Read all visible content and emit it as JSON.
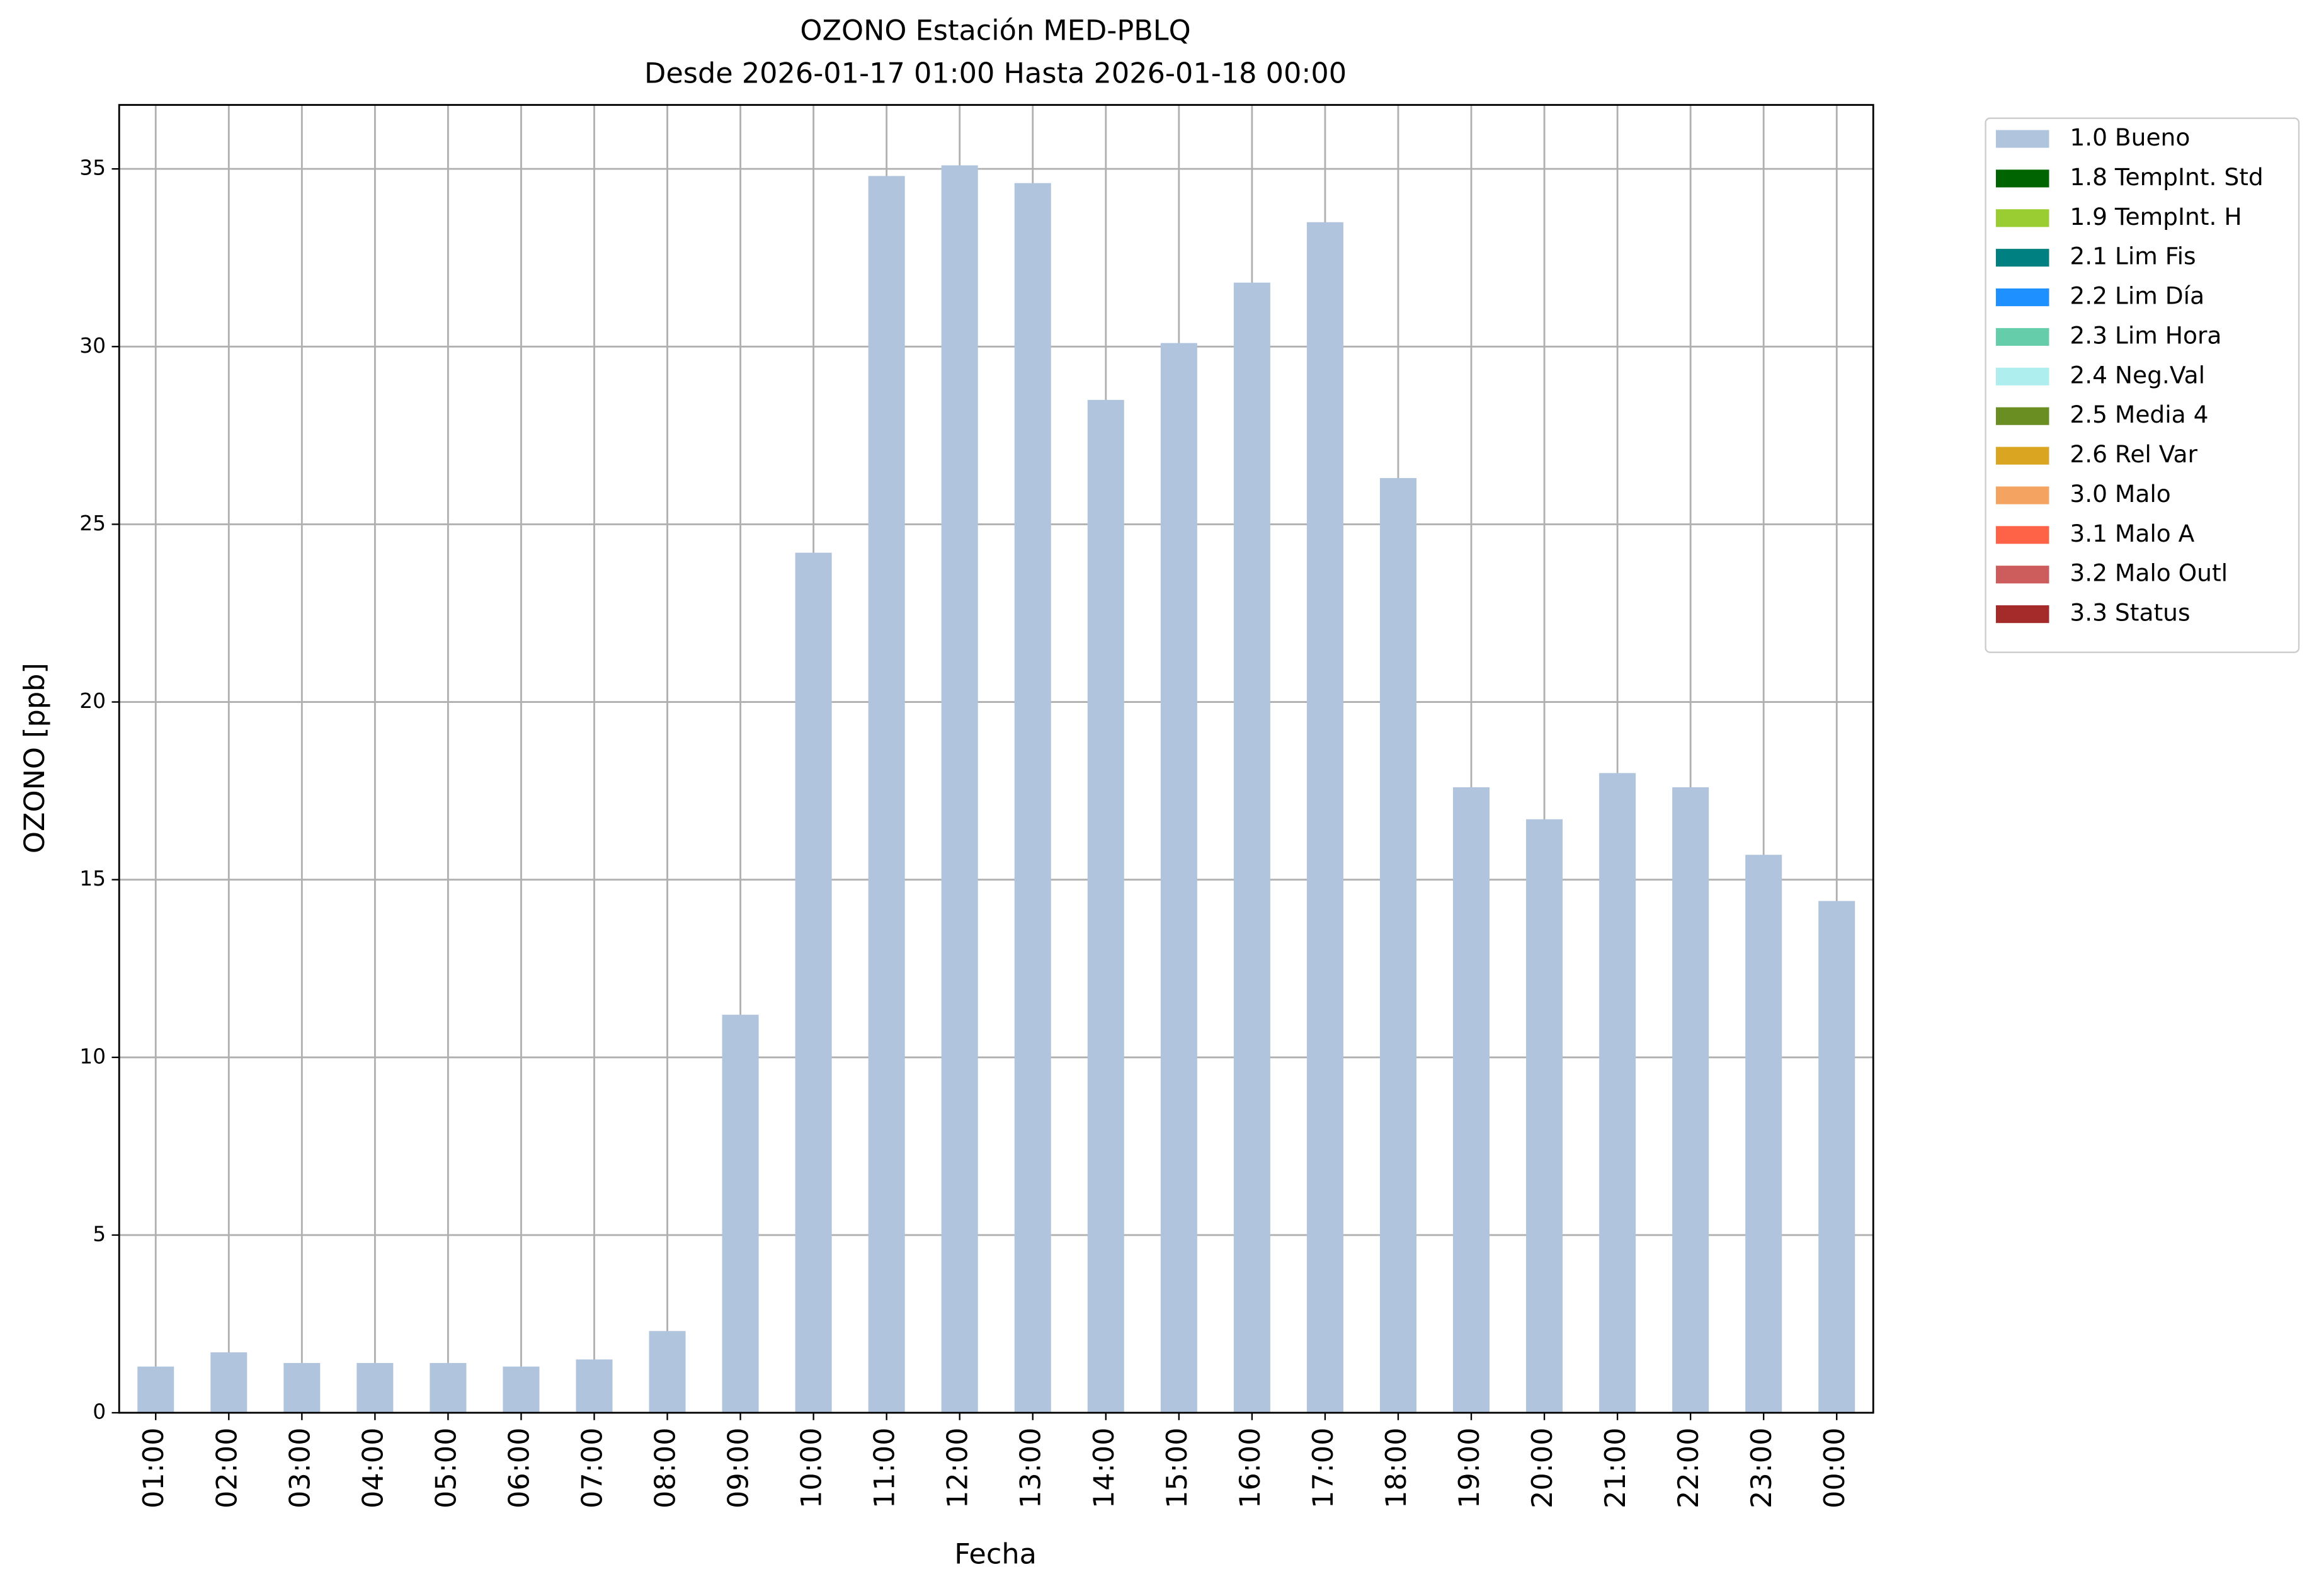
{
  "chart_data": {
    "type": "bar",
    "stacked": true,
    "title": "OZONO Estación MED-PBLQ",
    "subtitle": "Desde 2026-01-17 01:00 Hasta 2026-01-18 00:00",
    "x_label": "Fecha",
    "y_label": "OZONO [ppb]",
    "categories": [
      "01:00",
      "02:00",
      "03:00",
      "04:00",
      "05:00",
      "06:00",
      "07:00",
      "08:00",
      "09:00",
      "10:00",
      "11:00",
      "12:00",
      "13:00",
      "14:00",
      "15:00",
      "16:00",
      "17:00",
      "18:00",
      "19:00",
      "20:00",
      "21:00",
      "22:00",
      "23:00",
      "00:00"
    ],
    "series": [
      {
        "name": "1.0 Bueno",
        "color": "#b0c4de",
        "values": [
          1.3,
          1.7,
          1.4,
          1.4,
          1.4,
          1.3,
          1.5,
          2.3,
          11.2,
          24.2,
          34.8,
          35.1,
          34.6,
          28.5,
          30.1,
          31.8,
          33.5,
          26.3,
          17.6,
          16.7,
          18.0,
          17.6,
          15.7,
          14.4
        ]
      },
      {
        "name": "1.8 TempInt. Std",
        "color": "#006400",
        "values": [
          0,
          0,
          0,
          0,
          0,
          0,
          0,
          0,
          0,
          0,
          0,
          0,
          0,
          0,
          0,
          0,
          0,
          0,
          0,
          0,
          0,
          0,
          0,
          0
        ]
      },
      {
        "name": "1.9 TempInt. H",
        "color": "#9acd32",
        "values": [
          0,
          0,
          0,
          0,
          0,
          0,
          0,
          0,
          0,
          0,
          0,
          0,
          0,
          0,
          0,
          0,
          0,
          0,
          0,
          0,
          0,
          0,
          0,
          0
        ]
      },
      {
        "name": "2.1 Lim Fis",
        "color": "#008080",
        "values": [
          0,
          0,
          0,
          0,
          0,
          0,
          0,
          0,
          0,
          0,
          0,
          0,
          0,
          0,
          0,
          0,
          0,
          0,
          0,
          0,
          0,
          0,
          0,
          0
        ]
      },
      {
        "name": "2.2 Lim Día",
        "color": "#1e90ff",
        "values": [
          0,
          0,
          0,
          0,
          0,
          0,
          0,
          0,
          0,
          0,
          0,
          0,
          0,
          0,
          0,
          0,
          0,
          0,
          0,
          0,
          0,
          0,
          0,
          0
        ]
      },
      {
        "name": "2.3 Lim Hora",
        "color": "#66cdaa",
        "values": [
          0,
          0,
          0,
          0,
          0,
          0,
          0,
          0,
          0,
          0,
          0,
          0,
          0,
          0,
          0,
          0,
          0,
          0,
          0,
          0,
          0,
          0,
          0,
          0
        ]
      },
      {
        "name": "2.4 Neg.Val",
        "color": "#afeeee",
        "values": [
          0,
          0,
          0,
          0,
          0,
          0,
          0,
          0,
          0,
          0,
          0,
          0,
          0,
          0,
          0,
          0,
          0,
          0,
          0,
          0,
          0,
          0,
          0,
          0
        ]
      },
      {
        "name": "2.5 Media 4",
        "color": "#6b8e23",
        "values": [
          0,
          0,
          0,
          0,
          0,
          0,
          0,
          0,
          0,
          0,
          0,
          0,
          0,
          0,
          0,
          0,
          0,
          0,
          0,
          0,
          0,
          0,
          0,
          0
        ]
      },
      {
        "name": "2.6 Rel Var",
        "color": "#daa520",
        "values": [
          0,
          0,
          0,
          0,
          0,
          0,
          0,
          0,
          0,
          0,
          0,
          0,
          0,
          0,
          0,
          0,
          0,
          0,
          0,
          0,
          0,
          0,
          0,
          0
        ]
      },
      {
        "name": "3.0 Malo",
        "color": "#f4a460",
        "values": [
          0,
          0,
          0,
          0,
          0,
          0,
          0,
          0,
          0,
          0,
          0,
          0,
          0,
          0,
          0,
          0,
          0,
          0,
          0,
          0,
          0,
          0,
          0,
          0
        ]
      },
      {
        "name": "3.1 Malo A",
        "color": "#ff6347",
        "values": [
          0,
          0,
          0,
          0,
          0,
          0,
          0,
          0,
          0,
          0,
          0,
          0,
          0,
          0,
          0,
          0,
          0,
          0,
          0,
          0,
          0,
          0,
          0,
          0
        ]
      },
      {
        "name": "3.2 Malo Outl",
        "color": "#cd5c5c",
        "values": [
          0,
          0,
          0,
          0,
          0,
          0,
          0,
          0,
          0,
          0,
          0,
          0,
          0,
          0,
          0,
          0,
          0,
          0,
          0,
          0,
          0,
          0,
          0,
          0
        ]
      },
      {
        "name": "3.3 Status",
        "color": "#a52a2a",
        "values": [
          0,
          0,
          0,
          0,
          0,
          0,
          0,
          0,
          0,
          0,
          0,
          0,
          0,
          0,
          0,
          0,
          0,
          0,
          0,
          0,
          0,
          0,
          0,
          0
        ]
      }
    ],
    "ylim": [
      0,
      36.8
    ],
    "yticks": [
      0,
      5,
      10,
      15,
      20,
      25,
      30,
      35
    ],
    "grid": true,
    "legend": "outside-right"
  }
}
